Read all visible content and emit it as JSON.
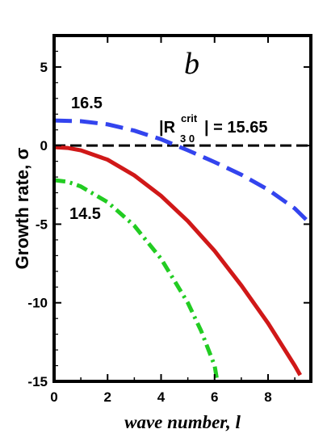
{
  "chart_data": {
    "type": "line",
    "panel_label": "b",
    "xlabel": "wave number, l",
    "ylabel": "Growth rate, σ",
    "xlim": [
      0,
      9.6
    ],
    "ylim": [
      -15,
      7
    ],
    "xticks": [
      0,
      2,
      4,
      6,
      8
    ],
    "yticks": [
      5,
      0,
      -5,
      -10,
      -15
    ],
    "grid": false,
    "annotation": {
      "prefix": "|R",
      "sup": "crit",
      "sub": "3 0",
      "suffix": "| = 15.65"
    },
    "series": [
      {
        "name": "16.5",
        "color": "#3344ee",
        "style": "dashed",
        "x": [
          0,
          1,
          2,
          3,
          4,
          5,
          6,
          7,
          8,
          9,
          9.6
        ],
        "y": [
          1.6,
          1.55,
          1.35,
          0.95,
          0.4,
          -0.3,
          -1.05,
          -1.85,
          -2.8,
          -4.0,
          -5.0
        ]
      },
      {
        "name": "",
        "color": "#d01818",
        "style": "solid",
        "x": [
          0,
          0.5,
          1,
          2,
          3,
          4,
          5,
          6,
          7,
          8,
          9,
          9.2
        ],
        "y": [
          -0.1,
          -0.15,
          -0.3,
          -0.9,
          -1.9,
          -3.2,
          -4.8,
          -6.7,
          -8.9,
          -11.3,
          -14.0,
          -14.6
        ]
      },
      {
        "name": "14.5",
        "color": "#22cc22",
        "style": "dashdot",
        "x": [
          0,
          0.5,
          1,
          2,
          3,
          4,
          5,
          5.5,
          6,
          6.1
        ],
        "y": [
          -2.2,
          -2.3,
          -2.6,
          -3.6,
          -5.1,
          -7.2,
          -10.0,
          -11.8,
          -14.0,
          -15.0
        ]
      }
    ],
    "reference_lines": [
      {
        "axis": "y",
        "value": 0,
        "color": "#000000",
        "style": "dashed"
      }
    ]
  }
}
